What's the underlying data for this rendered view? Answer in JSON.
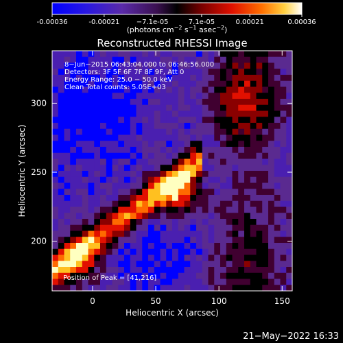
{
  "colorbar": {
    "ticks": [
      "-0.00036",
      "-0.00021",
      "−7.1e-05",
      "7.1e-05",
      "0.00021",
      "0.00036"
    ],
    "tick_values": [
      -0.00036,
      -0.00021,
      -7.1e-05,
      7.1e-05,
      0.00021,
      0.00036
    ],
    "range": [
      -0.00036,
      0.00036
    ],
    "unit_label": "(photons cm",
    "unit_sup1": "−2",
    "unit_mid": " s",
    "unit_sup2": "−1",
    "unit_mid2": " asec",
    "unit_sup3": "−2",
    "unit_end": ")"
  },
  "chart_data": {
    "type": "heatmap",
    "title": "Reconstructed RHESSI Image",
    "xlabel": "Heliocentric X (arcsec)",
    "ylabel": "Heliocentric Y (arcsec)",
    "xlim": [
      -32,
      158
    ],
    "ylim": [
      164,
      338
    ],
    "xticks": [
      0,
      50,
      100,
      150
    ],
    "yticks": [
      200,
      250,
      300
    ],
    "annotations": [
      "8−Jun−2015 06:43:04.000 to 06:46:56.000",
      "Detectors: 3F 5F 6F 7F 8F 9F, Att 0",
      "Energy Range: 25.0 − 50.0 keV",
      "Clean    Total counts: 5.05E+03"
    ],
    "peak_label": "Position of Peak = [41,216]",
    "peak": [
      41,
      216
    ],
    "colormap": [
      "#0000ff",
      "#4a1fb0",
      "#5a2a90",
      "#400030",
      "#000000",
      "#8a0000",
      "#e21000",
      "#ff6a00",
      "#ffc020",
      "#ffffc0"
    ]
  },
  "footer": {
    "timestamp": "21−May−2022 16:33"
  }
}
